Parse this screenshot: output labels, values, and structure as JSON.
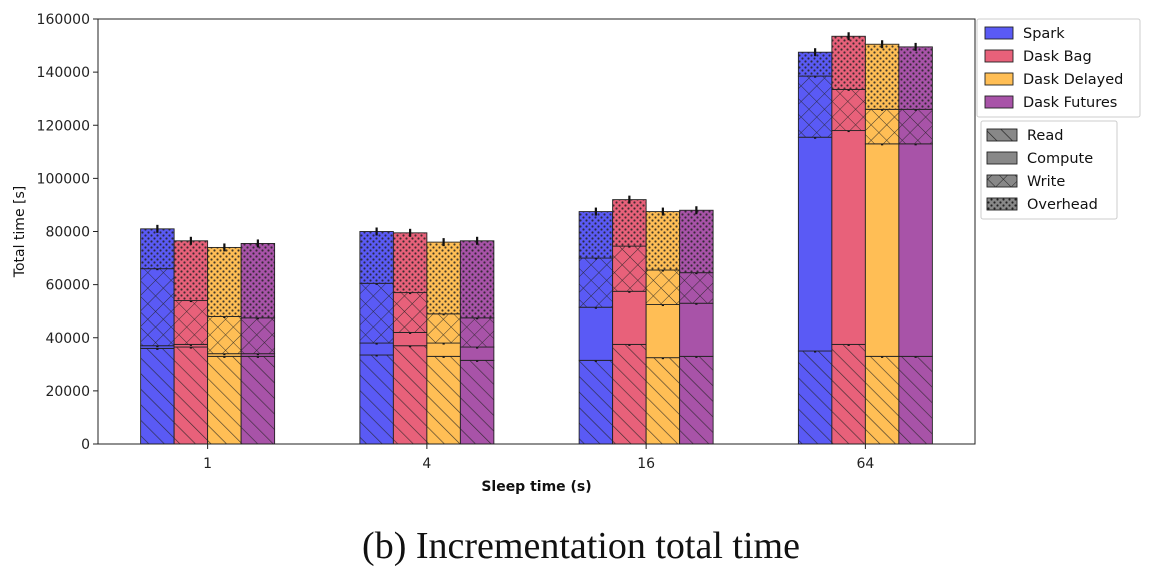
{
  "chart_data": {
    "type": "bar",
    "stacked": true,
    "xlabel": "Sleep time (s)",
    "ylabel": "Total time [s]",
    "ylim": [
      0,
      160000
    ],
    "yticks": [
      "0",
      "20000",
      "40000",
      "60000",
      "80000",
      "100000",
      "120000",
      "140000",
      "160000"
    ],
    "categories": [
      "1",
      "4",
      "16",
      "64"
    ],
    "grid": false,
    "legend_position": "right-outside-top",
    "series": [
      {
        "name": "Spark",
        "color": "#5a5af5",
        "read": [
          36000,
          33500,
          31500,
          35000
        ],
        "compute": [
          1000,
          4500,
          20000,
          80500
        ],
        "write": [
          29000,
          22500,
          18500,
          23000
        ],
        "overhead": [
          15000,
          19500,
          17500,
          9000
        ]
      },
      {
        "name": "Dask Bag",
        "color": "#e8617a",
        "read": [
          36500,
          37000,
          37500,
          37500
        ],
        "compute": [
          1000,
          5000,
          20000,
          80500
        ],
        "write": [
          16500,
          15000,
          17000,
          15500
        ],
        "overhead": [
          22500,
          22500,
          17500,
          20000
        ]
      },
      {
        "name": "Dask Delayed",
        "color": "#ffbe55",
        "read": [
          33000,
          33000,
          32500,
          33000
        ],
        "compute": [
          1000,
          5000,
          20000,
          80000
        ],
        "write": [
          14000,
          11000,
          13000,
          13000
        ],
        "overhead": [
          26000,
          27000,
          22000,
          24500
        ]
      },
      {
        "name": "Dask Futures",
        "color": "#a853a8",
        "read": [
          33000,
          31500,
          33000,
          33000
        ],
        "compute": [
          1000,
          5000,
          20000,
          80000
        ],
        "write": [
          13500,
          11000,
          11500,
          13000
        ],
        "overhead": [
          28000,
          29000,
          23500,
          23500
        ]
      }
    ],
    "components": [
      {
        "name": "Read",
        "pattern": "back-diagonal"
      },
      {
        "name": "Compute",
        "pattern": "solid"
      },
      {
        "name": "Write",
        "pattern": "crosshatch"
      },
      {
        "name": "Overhead",
        "pattern": "dots"
      }
    ]
  },
  "caption": "(b) Incrementation total time"
}
